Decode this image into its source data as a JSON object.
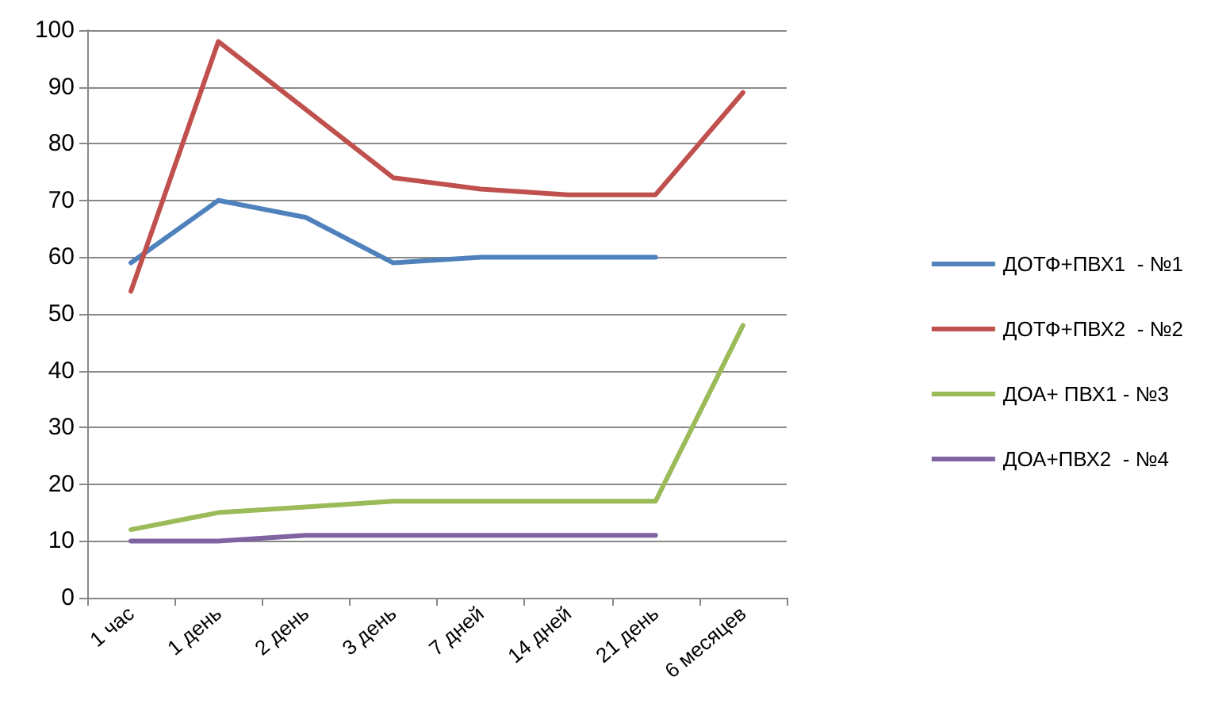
{
  "chart_data": {
    "type": "line",
    "categories": [
      "1 час",
      "1 день",
      "2 день",
      "3 день",
      "7 дней",
      "14 дней",
      "21 день",
      "6 месяцев"
    ],
    "series": [
      {
        "name": "ДОТФ+ПВХ1  - №1",
        "color": "#4f81bd",
        "values": [
          59,
          70,
          67,
          59,
          60,
          60,
          60,
          null
        ]
      },
      {
        "name": "ДОТФ+ПВХ2  - №2",
        "color": "#c0504d",
        "values": [
          54,
          98,
          86,
          74,
          72,
          71,
          71,
          89
        ]
      },
      {
        "name": "ДОА+ ПВХ1 - №3",
        "color": "#9bbb59",
        "values": [
          12,
          15,
          16,
          17,
          17,
          17,
          17,
          48
        ]
      },
      {
        "name": "ДОА+ПВХ2  - №4",
        "color": "#8064a2",
        "values": [
          10,
          10,
          11,
          11,
          11,
          11,
          11,
          null
        ]
      }
    ],
    "ylim": [
      0,
      100
    ],
    "yticks": [
      0,
      10,
      20,
      30,
      40,
      50,
      60,
      70,
      80,
      90,
      100
    ],
    "grid": "y",
    "legend": "right",
    "marker": "none",
    "line_style": "solid"
  }
}
